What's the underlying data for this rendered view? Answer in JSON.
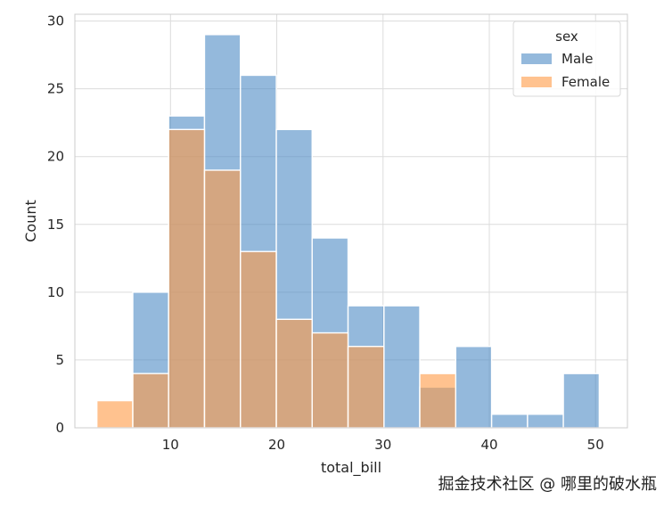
{
  "chart_data": {
    "type": "bar",
    "subtype": "histogram",
    "xlabel": "total_bill",
    "ylabel": "Count",
    "xlim": [
      1.0,
      53.0
    ],
    "ylim": [
      0,
      30.5
    ],
    "xticks": [
      10,
      20,
      30,
      40,
      50
    ],
    "yticks": [
      0,
      5,
      10,
      15,
      20,
      25,
      30
    ],
    "grid": true,
    "style": "whitegrid",
    "bin_edges": [
      3.07,
      6.45,
      9.82,
      13.2,
      16.58,
      19.96,
      23.33,
      26.71,
      30.09,
      33.46,
      36.84,
      40.22,
      43.6,
      46.97,
      50.35
    ],
    "series": [
      {
        "name": "Male",
        "color": "#4c8bc4",
        "opacity": 0.6,
        "values": [
          0,
          10,
          23,
          29,
          26,
          22,
          14,
          9,
          9,
          3,
          6,
          1,
          1,
          4
        ]
      },
      {
        "name": "Female",
        "color": "#ff9945",
        "opacity": 0.6,
        "values": [
          2,
          4,
          22,
          19,
          13,
          8,
          7,
          6,
          0,
          4,
          0,
          0,
          0,
          0
        ]
      }
    ],
    "legend": {
      "title": "sex",
      "placement": "top-right",
      "entries": [
        "Male",
        "Female"
      ]
    },
    "colors": {
      "male": "#4c8bc4",
      "female": "#ff9945",
      "overlap": "#86969a",
      "grid": "#dcdcdc",
      "frame": "#cccccc"
    }
  },
  "watermark": "掘金技术社区 @ 哪里的破水瓶"
}
